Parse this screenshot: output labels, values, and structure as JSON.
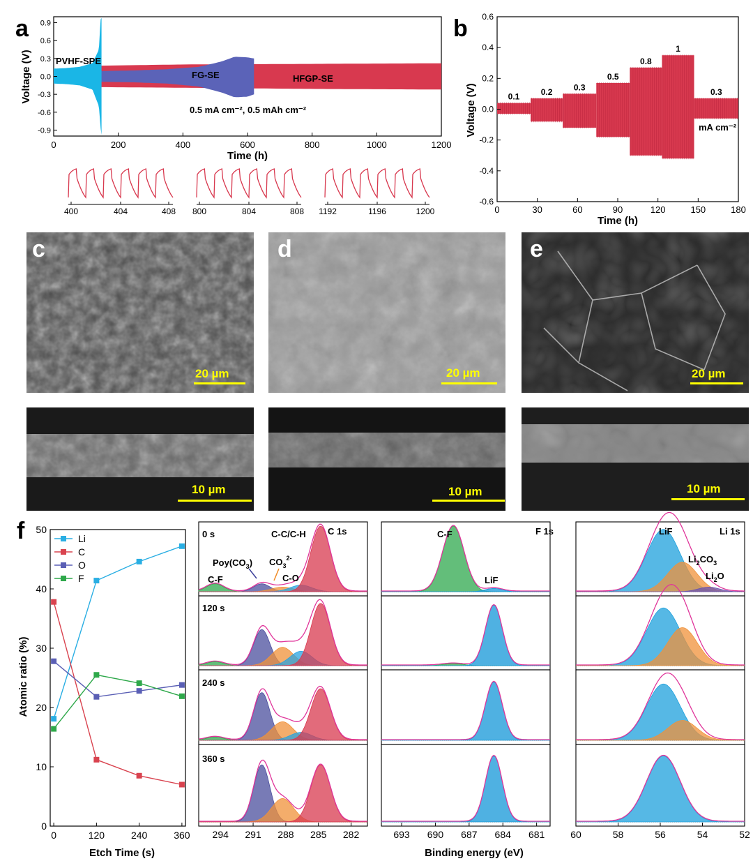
{
  "panels": {
    "a": "a",
    "b": "b",
    "c": "c",
    "d": "d",
    "e": "e",
    "f": "f"
  },
  "colors": {
    "pvhf": "#1ab6e6",
    "fg": "#5b63b8",
    "hfgp": "#d8394f",
    "li": "#29aee3",
    "c": "#d9434f",
    "o": "#5a5fb5",
    "f": "#2ea84a",
    "envelope": "#e0369b",
    "scale_bar": "#ffff00"
  },
  "sem": {
    "c_top_scale": "20 µm",
    "d_top_scale": "20 µm",
    "e_top_scale": "20 µm",
    "c_bottom_scale": "10 µm",
    "d_bottom_scale": "10 µm",
    "e_bottom_scale": "10 µm"
  },
  "chart_data": [
    {
      "id": "a",
      "type": "line",
      "xlabel": "Time (h)",
      "ylabel": "Voltage (V)",
      "xlim": [
        0,
        1200
      ],
      "ylim": [
        -1.0,
        1.0
      ],
      "xticks": [
        "0",
        "200",
        "400",
        "600",
        "800",
        "1000",
        "1200"
      ],
      "yticks": [
        "0.9",
        "0.6",
        "0.3",
        "0.0",
        "-0.3",
        "-0.6",
        "-0.9"
      ],
      "series": [
        {
          "name": "PVHF-SPE",
          "x": [
            0,
            40,
            80,
            120,
            140,
            145,
            148
          ],
          "upper": [
            0.13,
            0.14,
            0.16,
            0.22,
            0.45,
            0.95,
            0.98
          ],
          "lower": [
            -0.12,
            -0.13,
            -0.15,
            -0.22,
            -0.5,
            -0.85,
            -0.98
          ]
        },
        {
          "name": "FG-SE",
          "x": [
            145,
            250,
            350,
            450,
            520,
            560,
            600,
            620
          ],
          "upper": [
            0.09,
            0.1,
            0.12,
            0.16,
            0.25,
            0.33,
            0.32,
            0.3
          ],
          "lower": [
            -0.09,
            -0.1,
            -0.12,
            -0.17,
            -0.27,
            -0.35,
            -0.34,
            -0.3
          ]
        },
        {
          "name": "HFGP-SE",
          "x": [
            145,
            400,
            800,
            1200
          ],
          "upper": [
            0.18,
            0.2,
            0.21,
            0.22
          ],
          "lower": [
            -0.18,
            -0.19,
            -0.21,
            -0.22
          ]
        }
      ],
      "condition": "0.5 mA cm⁻², 0.5 mAh cm⁻²",
      "insets": [
        {
          "xticks": [
            "400",
            "404",
            "408"
          ]
        },
        {
          "xticks": [
            "800",
            "804",
            "808"
          ]
        },
        {
          "xticks": [
            "1192",
            "1196",
            "1200"
          ]
        }
      ]
    },
    {
      "id": "b",
      "type": "line",
      "xlabel": "Time (h)",
      "ylabel": "Voltage (V)",
      "xlim": [
        0,
        180
      ],
      "ylim": [
        -0.6,
        0.6
      ],
      "xticks": [
        "0",
        "30",
        "60",
        "90",
        "120",
        "150",
        "180"
      ],
      "yticks": [
        "0.6",
        "0.4",
        "0.2",
        "0.0",
        "-0.2",
        "-0.4",
        "-0.6"
      ],
      "steps": [
        {
          "label": "0.1",
          "x": [
            0,
            25
          ],
          "upper": 0.04,
          "lower": -0.03
        },
        {
          "label": "0.2",
          "x": [
            25,
            49
          ],
          "upper": 0.07,
          "lower": -0.08
        },
        {
          "label": "0.3",
          "x": [
            49,
            74
          ],
          "upper": 0.1,
          "lower": -0.12
        },
        {
          "label": "0.5",
          "x": [
            74,
            99
          ],
          "upper": 0.17,
          "lower": -0.18
        },
        {
          "label": "0.8",
          "x": [
            99,
            123
          ],
          "upper": 0.27,
          "lower": -0.3
        },
        {
          "label": "1",
          "x": [
            123,
            147
          ],
          "upper": 0.35,
          "lower": -0.32
        },
        {
          "label": "0.3",
          "x": [
            147,
            180
          ],
          "upper": 0.07,
          "lower": -0.06
        }
      ],
      "unit_label": "mA cm⁻²"
    },
    {
      "id": "f",
      "type": "line",
      "xlabel": "Etch Time (s)",
      "ylabel": "Atomic ratio (%)",
      "xlim": [
        -10,
        370
      ],
      "ylim": [
        0,
        50
      ],
      "x": [
        0,
        120,
        240,
        360
      ],
      "xticks": [
        "0",
        "120",
        "240",
        "360"
      ],
      "yticks": [
        "0",
        "10",
        "20",
        "30",
        "40",
        "50"
      ],
      "series": [
        {
          "name": "Li",
          "values": [
            18.1,
            41.4,
            44.6,
            47.2
          ]
        },
        {
          "name": "C",
          "values": [
            37.8,
            11.2,
            8.5,
            7.0
          ]
        },
        {
          "name": "O",
          "values": [
            27.8,
            21.8,
            22.8,
            23.8
          ]
        },
        {
          "name": "F",
          "values": [
            16.4,
            25.5,
            24.1,
            21.9
          ]
        }
      ]
    },
    {
      "id": "f-xps",
      "type": "area",
      "xlabel": "Binding energy (eV)",
      "c1s": {
        "title": "C 1s",
        "xticks": [
          "294",
          "291",
          "288",
          "285",
          "282"
        ],
        "xlim": [
          296,
          280.5
        ],
        "labels": {
          "cf": "C-F",
          "poy": "Poy(CO",
          "poy_sub": "3",
          "poy_end": ")",
          "co3": "CO",
          "co3_sub": "3",
          "co3_sup": "2-",
          "cc": "C-C/C-H",
          "co": "C-O"
        },
        "components": [
          {
            "name": "C-F",
            "center": 294.5,
            "width": 0.8
          },
          {
            "name": "Poy(CO3)",
            "center": 290.2,
            "width": 0.75
          },
          {
            "name": "CO3 2-",
            "center": 288.3,
            "width": 1.0
          },
          {
            "name": "C-O",
            "center": 286.6,
            "width": 1.0
          },
          {
            "name": "C-C/C-H",
            "center": 284.8,
            "width": 0.9
          }
        ],
        "spectra": [
          {
            "time": "0 s",
            "heights": [
              0.12,
              0.12,
              0.07,
              0.1,
              1.0
            ]
          },
          {
            "time": "120 s",
            "heights": [
              0.06,
              0.55,
              0.28,
              0.22,
              0.95
            ]
          },
          {
            "time": "240 s",
            "heights": [
              0.05,
              0.72,
              0.28,
              0.12,
              0.78
            ]
          },
          {
            "time": "360 s",
            "heights": [
              0.0,
              0.78,
              0.32,
              0.0,
              0.78
            ]
          }
        ]
      },
      "f1s": {
        "title": "F 1s",
        "xticks": [
          "693",
          "690",
          "687",
          "684",
          "681"
        ],
        "xlim": [
          694.8,
          679.8
        ],
        "labels": {
          "cf": "C-F",
          "lif": "LiF"
        },
        "components": [
          {
            "name": "C-F",
            "center": 688.4,
            "width": 0.95
          },
          {
            "name": "LiF",
            "center": 684.8,
            "width": 0.75
          }
        ],
        "spectra": [
          {
            "heights": [
              1.0,
              0.05
            ]
          },
          {
            "heights": [
              0.03,
              0.92
            ]
          },
          {
            "heights": [
              0.0,
              0.88
            ]
          },
          {
            "heights": [
              0.0,
              0.9
            ]
          }
        ]
      },
      "li1s": {
        "title": "Li 1s",
        "xticks": [
          "60",
          "58",
          "56",
          "54",
          "52"
        ],
        "xlim": [
          60,
          52
        ],
        "labels": {
          "lif": "LiF",
          "li2co3": "Li",
          "li2co3_sub": "2",
          "li2co3_end": "CO",
          "li2co3_sub2": "3",
          "li2o": "Li",
          "li2o_sub": "2",
          "li2o_end": "O"
        },
        "components": [
          {
            "name": "LiF",
            "center": 55.85,
            "width": 0.8
          },
          {
            "name": "Li2CO3",
            "center": 54.95,
            "width": 0.7
          },
          {
            "name": "Li2O",
            "center": 53.7,
            "width": 0.5
          }
        ],
        "spectra": [
          {
            "heights": [
              0.95,
              0.45,
              0.07
            ]
          },
          {
            "heights": [
              0.88,
              0.58,
              0.0
            ]
          },
          {
            "heights": [
              0.85,
              0.3,
              0.0
            ]
          },
          {
            "heights": [
              0.9,
              0.0,
              0.0
            ]
          }
        ]
      }
    }
  ]
}
